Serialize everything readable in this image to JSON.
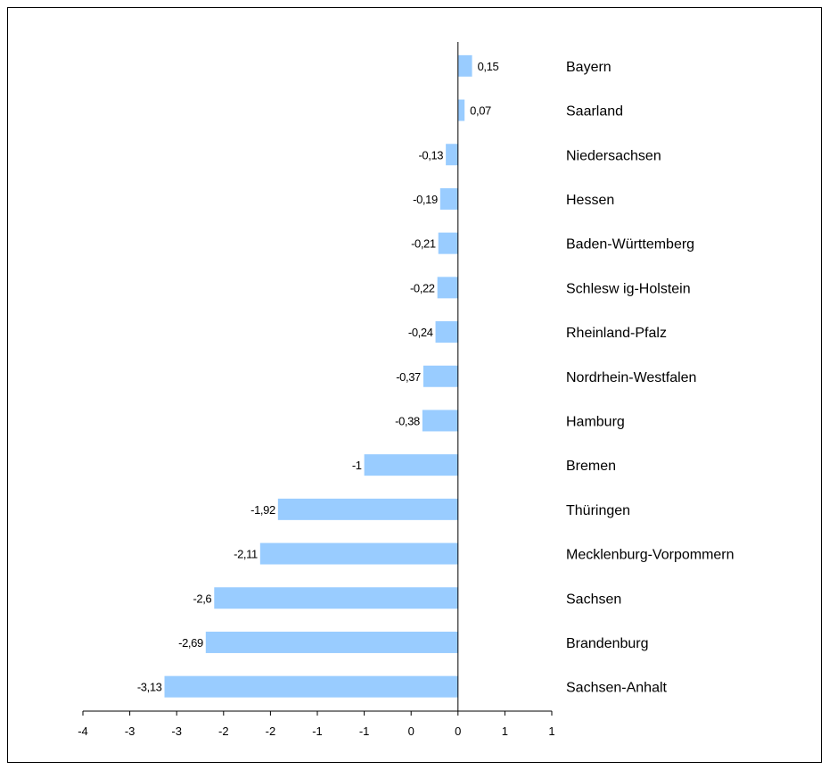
{
  "chart_data": {
    "type": "bar",
    "orientation": "horizontal",
    "categories": [
      "Bayern",
      "Saarland",
      "Niedersachsen",
      "Hessen",
      "Baden-Württemberg",
      "Schlesw ig-Holstein",
      "Rheinland-Pfalz",
      "Nordrhein-Westfalen",
      "Hamburg",
      "Bremen",
      "Thüringen",
      "Mecklenburg-Vorpommern",
      "Sachsen",
      "Brandenburg",
      "Sachsen-Anhalt"
    ],
    "values": [
      0.15,
      0.07,
      -0.13,
      -0.19,
      -0.21,
      -0.22,
      -0.24,
      -0.37,
      -0.38,
      -1,
      -1.92,
      -2.11,
      -2.6,
      -2.69,
      -3.13
    ],
    "value_labels": [
      "0,15",
      "0,07",
      "-0,13",
      "-0,19",
      "-0,21",
      "-0,22",
      "-0,24",
      "-0,37",
      "-0,38",
      "-1",
      "-1,92",
      "-2,11",
      "-2,6",
      "-2,69",
      "-3,13"
    ],
    "xlim": [
      -4,
      1
    ],
    "x_ticks": [
      -4,
      -3.5,
      -3,
      -2.5,
      -2,
      -1.5,
      -1,
      -0.5,
      0,
      0.5,
      1
    ],
    "x_tick_labels": [
      "-4",
      "-3",
      "-3",
      "-2",
      "-2",
      "-1",
      "-1",
      "0",
      "0",
      "1",
      "1"
    ],
    "title": "",
    "xlabel": "",
    "ylabel": "",
    "grid": false,
    "legend": "none",
    "colors": {
      "bar": "#99ccff",
      "axis": "#000000",
      "background": "#ffffff"
    }
  }
}
